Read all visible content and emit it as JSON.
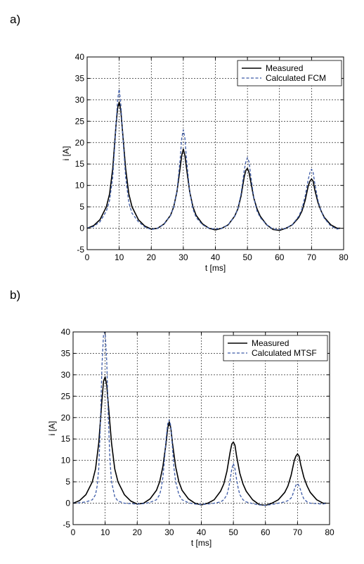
{
  "panels": [
    {
      "label": "a)",
      "chart_data": {
        "type": "line",
        "xlabel": "t [ms]",
        "ylabel": "i [A]",
        "xlim": [
          0,
          80
        ],
        "ylim": [
          -5,
          40
        ],
        "xticks": [
          0,
          10,
          20,
          30,
          40,
          50,
          60,
          70,
          80
        ],
        "yticks": [
          -5,
          0,
          5,
          10,
          15,
          20,
          25,
          30,
          35,
          40
        ],
        "grid": true,
        "legend_position": "top-right",
        "series": [
          {
            "name": "Measured",
            "color": "#000000",
            "style": "solid",
            "x": [
              0,
              2,
              4,
              6,
              7,
              8,
              9,
              9.5,
              10,
              10.5,
              11,
              12,
              13,
              14,
              16,
              18,
              20,
              22,
              24,
              26,
              27,
              28,
              29,
              29.5,
              30,
              30.5,
              31,
              32,
              33,
              34,
              36,
              38,
              40,
              42,
              44,
              46,
              47,
              48,
              49,
              49.5,
              50,
              50.5,
              51,
              52,
              53,
              54,
              56,
              58,
              60,
              62,
              64,
              66,
              67,
              68,
              69,
              69.5,
              70,
              70.5,
              71,
              72,
              73,
              74,
              76,
              78,
              79
            ],
            "y": [
              0,
              0.6,
              2,
              5,
              8,
              14,
              24,
              28,
              29.5,
              27.5,
              23,
              14,
              8,
              5,
              2,
              0.5,
              -0.2,
              0,
              1,
              3,
              5,
              8.5,
              14,
              17,
              18.5,
              17,
              14,
              8.5,
              5,
              3,
              1,
              0,
              -0.4,
              0,
              0.8,
              2.8,
              4.5,
              7.5,
              12,
              13.5,
              14,
              13,
              11,
              7,
              4.5,
              2.8,
              0.8,
              -0.3,
              -0.5,
              0,
              0.8,
              2.5,
              4,
              6.5,
              10,
              11,
              11.5,
              11,
              9,
              6,
              4,
              2.5,
              0.8,
              0,
              0
            ]
          },
          {
            "name": "Calculated FCM",
            "color": "#3c5aa6",
            "style": "dashed",
            "x": [
              0,
              2,
              4,
              6,
              7,
              8,
              9,
              9.5,
              10,
              10.5,
              11,
              12,
              13,
              14,
              16,
              18,
              20,
              22,
              24,
              26,
              27,
              28,
              29,
              29.5,
              30,
              30.5,
              31,
              32,
              33,
              34,
              36,
              38,
              40,
              42,
              44,
              46,
              47,
              48,
              49,
              49.5,
              50,
              50.5,
              51,
              52,
              53,
              54,
              56,
              58,
              60,
              62,
              64,
              66,
              67,
              68,
              69,
              69.5,
              70,
              70.5,
              71,
              72,
              73,
              74,
              76,
              78,
              79
            ],
            "y": [
              0,
              0.4,
              1.5,
              4,
              6.5,
              12,
              24,
              30,
              32.5,
              29,
              23,
              12,
              6,
              3.5,
              1.5,
              0.3,
              -0.3,
              0,
              1,
              3,
              5,
              8.5,
              16,
              21,
              23,
              21,
              16,
              8.5,
              4.5,
              2.5,
              0.8,
              0,
              -0.2,
              0,
              0.8,
              2.8,
              4.5,
              8,
              13.5,
              15.5,
              16.5,
              15.5,
              12.5,
              7,
              4,
              2.5,
              0.8,
              -0.2,
              -0.3,
              0,
              0.8,
              2.8,
              4.5,
              7.5,
              11.5,
              13,
              13.8,
              13,
              10.5,
              6.5,
              4,
              2.3,
              0.5,
              -0.2,
              0
            ]
          }
        ]
      }
    },
    {
      "label": "b)",
      "chart_data": {
        "type": "line",
        "xlabel": "t [ms]",
        "ylabel": "i [A]",
        "xlim": [
          0,
          80
        ],
        "ylim": [
          -5,
          40
        ],
        "xticks": [
          0,
          10,
          20,
          30,
          40,
          50,
          60,
          70,
          80
        ],
        "yticks": [
          -5,
          0,
          5,
          10,
          15,
          20,
          25,
          30,
          35,
          40
        ],
        "grid": true,
        "legend_position": "top-right",
        "series": [
          {
            "name": "Measured",
            "color": "#000000",
            "style": "solid",
            "x": [
              0,
              2,
              4,
              6,
              7,
              8,
              9,
              9.5,
              10,
              10.5,
              11,
              12,
              13,
              14,
              16,
              18,
              20,
              22,
              24,
              26,
              27,
              28,
              29,
              29.5,
              30,
              30.5,
              31,
              32,
              33,
              34,
              36,
              38,
              40,
              42,
              44,
              46,
              47,
              48,
              49,
              49.5,
              50,
              50.5,
              51,
              52,
              53,
              54,
              56,
              58,
              60,
              62,
              64,
              66,
              67,
              68,
              69,
              69.5,
              70,
              70.5,
              71,
              72,
              73,
              74,
              76,
              78,
              79
            ],
            "y": [
              0,
              0.6,
              2,
              5,
              8,
              14,
              24,
              28.5,
              29.5,
              27.5,
              23,
              14,
              8,
              5,
              2,
              0.5,
              -0.2,
              0,
              1,
              3,
              5,
              8.5,
              14,
              17.5,
              19,
              17.5,
              14,
              8.5,
              5,
              3,
              1,
              0,
              -0.4,
              0,
              0.8,
              2.8,
              4.5,
              7.5,
              12,
              13.8,
              14.3,
              13.5,
              11,
              7,
              4.5,
              2.8,
              0.8,
              -0.3,
              -0.5,
              0,
              0.8,
              2.5,
              4,
              6.5,
              10,
              11,
              11.5,
              11,
              9,
              6,
              4,
              2.5,
              0.8,
              0,
              0
            ]
          },
          {
            "name": "Calculated MTSF",
            "color": "#3c5aa6",
            "style": "dashed",
            "x": [
              0,
              2,
              4,
              6,
              7,
              7.5,
              8,
              8.5,
              9,
              9.5,
              10,
              10.5,
              11,
              11.5,
              12,
              13,
              14,
              16,
              18,
              20,
              22,
              24,
              26,
              27,
              27.5,
              28,
              28.5,
              29,
              29.5,
              30,
              30.5,
              31,
              31.5,
              32,
              33,
              34,
              36,
              38,
              40,
              42,
              44,
              46,
              47,
              48,
              48.5,
              49,
              49.5,
              50,
              50.5,
              51,
              51.5,
              52,
              53,
              54,
              56,
              58,
              60,
              62,
              64,
              66,
              67,
              68,
              68.5,
              69,
              69.5,
              70,
              70.5,
              71,
              71.5,
              72,
              73,
              74,
              76,
              78,
              79
            ],
            "y": [
              0,
              0.1,
              0.3,
              0.8,
              2,
              4,
              8,
              18,
              32,
              39.5,
              40,
              33,
              20,
              10,
              5,
              1.5,
              0.5,
              0,
              -0.1,
              -0.2,
              -0.1,
              0.2,
              0.8,
              2,
              3.5,
              6,
              10,
              15,
              18.5,
              19.5,
              18,
              13,
              8,
              5,
              2,
              0.8,
              0.1,
              -0.2,
              -0.3,
              -0.2,
              0,
              0.3,
              0.8,
              2,
              3.5,
              5.5,
              8,
              9.3,
              8,
              5.5,
              3.5,
              2,
              0.8,
              0.3,
              -0.1,
              -0.4,
              -0.5,
              -0.3,
              0,
              0.3,
              0.6,
              1.2,
              2,
              3.2,
              4.2,
              4.6,
              4,
              3,
              1.8,
              1,
              0.3,
              0,
              -0.1,
              -0.2,
              0
            ]
          }
        ]
      }
    }
  ]
}
